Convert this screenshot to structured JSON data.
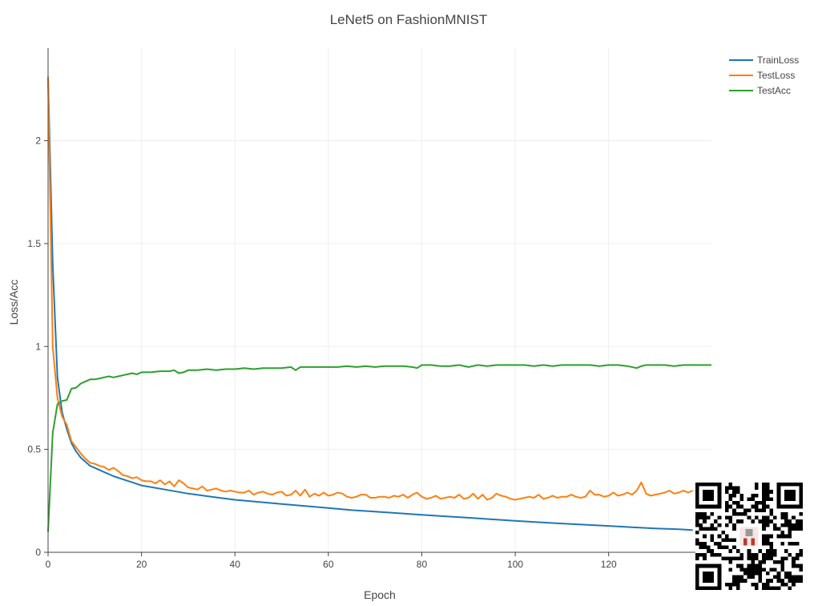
{
  "chart_data": {
    "type": "line",
    "title": "LeNet5 on FashionMNIST",
    "xlabel": "Epoch",
    "ylabel": "Loss/Acc",
    "xlim": [
      0,
      142
    ],
    "ylim": [
      0,
      2.45
    ],
    "x_ticks": [
      0,
      20,
      40,
      60,
      80,
      100,
      120
    ],
    "y_ticks": [
      0,
      0.5,
      1,
      1.5,
      2
    ],
    "y_tick_labels": [
      "0",
      "0.5",
      "1",
      "1.5",
      "2"
    ],
    "grid": true,
    "legend_position": "top-right",
    "series": [
      {
        "name": "TrainLoss",
        "color": "#1f77b4",
        "points": [
          [
            0,
            2.31
          ],
          [
            1,
            1.4
          ],
          [
            2,
            0.85
          ],
          [
            3,
            0.68
          ],
          [
            4,
            0.6
          ],
          [
            5,
            0.53
          ],
          [
            6,
            0.49
          ],
          [
            7,
            0.46
          ],
          [
            8,
            0.44
          ],
          [
            9,
            0.42
          ],
          [
            10,
            0.41
          ],
          [
            12,
            0.39
          ],
          [
            14,
            0.37
          ],
          [
            16,
            0.355
          ],
          [
            18,
            0.34
          ],
          [
            20,
            0.325
          ],
          [
            25,
            0.305
          ],
          [
            30,
            0.285
          ],
          [
            35,
            0.27
          ],
          [
            40,
            0.255
          ],
          [
            45,
            0.245
          ],
          [
            50,
            0.235
          ],
          [
            55,
            0.225
          ],
          [
            60,
            0.215
          ],
          [
            65,
            0.205
          ],
          [
            70,
            0.198
          ],
          [
            75,
            0.19
          ],
          [
            80,
            0.182
          ],
          [
            85,
            0.175
          ],
          [
            90,
            0.168
          ],
          [
            95,
            0.16
          ],
          [
            100,
            0.153
          ],
          [
            105,
            0.146
          ],
          [
            110,
            0.14
          ],
          [
            115,
            0.134
          ],
          [
            120,
            0.128
          ],
          [
            125,
            0.122
          ],
          [
            130,
            0.116
          ],
          [
            135,
            0.112
          ],
          [
            138,
            0.108
          ]
        ]
      },
      {
        "name": "TestLoss",
        "color": "#ff7f0e",
        "points": [
          [
            0,
            2.31
          ],
          [
            1,
            1.0
          ],
          [
            2,
            0.75
          ],
          [
            3,
            0.66
          ],
          [
            4,
            0.62
          ],
          [
            5,
            0.54
          ],
          [
            6,
            0.51
          ],
          [
            7,
            0.48
          ],
          [
            8,
            0.455
          ],
          [
            9,
            0.435
          ],
          [
            10,
            0.43
          ],
          [
            11,
            0.42
          ],
          [
            12,
            0.415
          ],
          [
            13,
            0.4
          ],
          [
            14,
            0.41
          ],
          [
            15,
            0.395
          ],
          [
            16,
            0.375
          ],
          [
            17,
            0.37
          ],
          [
            18,
            0.36
          ],
          [
            19,
            0.365
          ],
          [
            20,
            0.35
          ],
          [
            21,
            0.345
          ],
          [
            22,
            0.345
          ],
          [
            23,
            0.335
          ],
          [
            24,
            0.35
          ],
          [
            25,
            0.33
          ],
          [
            26,
            0.345
          ],
          [
            27,
            0.32
          ],
          [
            28,
            0.35
          ],
          [
            29,
            0.335
          ],
          [
            30,
            0.315
          ],
          [
            31,
            0.31
          ],
          [
            32,
            0.305
          ],
          [
            33,
            0.32
          ],
          [
            34,
            0.3
          ],
          [
            35,
            0.305
          ],
          [
            36,
            0.31
          ],
          [
            37,
            0.3
          ],
          [
            38,
            0.295
          ],
          [
            39,
            0.3
          ],
          [
            40,
            0.295
          ],
          [
            41,
            0.29
          ],
          [
            42,
            0.29
          ],
          [
            43,
            0.3
          ],
          [
            44,
            0.28
          ],
          [
            45,
            0.29
          ],
          [
            46,
            0.295
          ],
          [
            47,
            0.285
          ],
          [
            48,
            0.28
          ],
          [
            49,
            0.29
          ],
          [
            50,
            0.295
          ],
          [
            51,
            0.275
          ],
          [
            52,
            0.28
          ],
          [
            53,
            0.3
          ],
          [
            54,
            0.275
          ],
          [
            55,
            0.305
          ],
          [
            56,
            0.27
          ],
          [
            57,
            0.285
          ],
          [
            58,
            0.275
          ],
          [
            59,
            0.29
          ],
          [
            60,
            0.275
          ],
          [
            61,
            0.28
          ],
          [
            62,
            0.29
          ],
          [
            63,
            0.285
          ],
          [
            64,
            0.27
          ],
          [
            65,
            0.265
          ],
          [
            66,
            0.27
          ],
          [
            67,
            0.28
          ],
          [
            68,
            0.28
          ],
          [
            69,
            0.265
          ],
          [
            70,
            0.265
          ],
          [
            71,
            0.27
          ],
          [
            72,
            0.27
          ],
          [
            73,
            0.265
          ],
          [
            74,
            0.275
          ],
          [
            75,
            0.27
          ],
          [
            76,
            0.28
          ],
          [
            77,
            0.265
          ],
          [
            78,
            0.28
          ],
          [
            79,
            0.29
          ],
          [
            80,
            0.27
          ],
          [
            81,
            0.26
          ],
          [
            82,
            0.265
          ],
          [
            83,
            0.275
          ],
          [
            84,
            0.26
          ],
          [
            85,
            0.265
          ],
          [
            86,
            0.27
          ],
          [
            87,
            0.265
          ],
          [
            88,
            0.28
          ],
          [
            89,
            0.26
          ],
          [
            90,
            0.265
          ],
          [
            91,
            0.285
          ],
          [
            92,
            0.26
          ],
          [
            93,
            0.28
          ],
          [
            94,
            0.255
          ],
          [
            95,
            0.265
          ],
          [
            96,
            0.285
          ],
          [
            97,
            0.275
          ],
          [
            98,
            0.27
          ],
          [
            99,
            0.26
          ],
          [
            100,
            0.255
          ],
          [
            101,
            0.26
          ],
          [
            102,
            0.265
          ],
          [
            103,
            0.27
          ],
          [
            104,
            0.265
          ],
          [
            105,
            0.28
          ],
          [
            106,
            0.26
          ],
          [
            107,
            0.265
          ],
          [
            108,
            0.275
          ],
          [
            109,
            0.265
          ],
          [
            110,
            0.27
          ],
          [
            111,
            0.27
          ],
          [
            112,
            0.28
          ],
          [
            113,
            0.27
          ],
          [
            114,
            0.265
          ],
          [
            115,
            0.27
          ],
          [
            116,
            0.3
          ],
          [
            117,
            0.28
          ],
          [
            118,
            0.28
          ],
          [
            119,
            0.27
          ],
          [
            120,
            0.275
          ],
          [
            121,
            0.29
          ],
          [
            122,
            0.275
          ],
          [
            123,
            0.28
          ],
          [
            124,
            0.29
          ],
          [
            125,
            0.28
          ],
          [
            126,
            0.3
          ],
          [
            127,
            0.34
          ],
          [
            128,
            0.285
          ],
          [
            129,
            0.275
          ],
          [
            130,
            0.28
          ],
          [
            131,
            0.285
          ],
          [
            132,
            0.29
          ],
          [
            133,
            0.3
          ],
          [
            134,
            0.285
          ],
          [
            135,
            0.29
          ],
          [
            136,
            0.3
          ],
          [
            137,
            0.29
          ],
          [
            138,
            0.3
          ]
        ]
      },
      {
        "name": "TestAcc",
        "color": "#2ca02c",
        "points": [
          [
            0,
            0.1
          ],
          [
            1,
            0.58
          ],
          [
            2,
            0.72
          ],
          [
            3,
            0.735
          ],
          [
            4,
            0.74
          ],
          [
            5,
            0.795
          ],
          [
            6,
            0.8
          ],
          [
            7,
            0.82
          ],
          [
            8,
            0.83
          ],
          [
            9,
            0.84
          ],
          [
            10,
            0.84
          ],
          [
            11,
            0.845
          ],
          [
            12,
            0.85
          ],
          [
            13,
            0.855
          ],
          [
            14,
            0.85
          ],
          [
            15,
            0.855
          ],
          [
            16,
            0.86
          ],
          [
            17,
            0.865
          ],
          [
            18,
            0.87
          ],
          [
            19,
            0.865
          ],
          [
            20,
            0.875
          ],
          [
            22,
            0.875
          ],
          [
            24,
            0.88
          ],
          [
            26,
            0.88
          ],
          [
            27,
            0.885
          ],
          [
            28,
            0.87
          ],
          [
            29,
            0.875
          ],
          [
            30,
            0.885
          ],
          [
            32,
            0.885
          ],
          [
            34,
            0.89
          ],
          [
            36,
            0.885
          ],
          [
            38,
            0.89
          ],
          [
            40,
            0.89
          ],
          [
            42,
            0.895
          ],
          [
            44,
            0.89
          ],
          [
            46,
            0.895
          ],
          [
            48,
            0.895
          ],
          [
            50,
            0.895
          ],
          [
            52,
            0.9
          ],
          [
            53,
            0.885
          ],
          [
            54,
            0.9
          ],
          [
            56,
            0.9
          ],
          [
            58,
            0.9
          ],
          [
            60,
            0.9
          ],
          [
            62,
            0.9
          ],
          [
            64,
            0.905
          ],
          [
            66,
            0.9
          ],
          [
            68,
            0.905
          ],
          [
            70,
            0.9
          ],
          [
            72,
            0.905
          ],
          [
            74,
            0.905
          ],
          [
            76,
            0.905
          ],
          [
            78,
            0.9
          ],
          [
            79,
            0.895
          ],
          [
            80,
            0.91
          ],
          [
            82,
            0.91
          ],
          [
            84,
            0.905
          ],
          [
            86,
            0.905
          ],
          [
            88,
            0.91
          ],
          [
            90,
            0.9
          ],
          [
            92,
            0.91
          ],
          [
            94,
            0.905
          ],
          [
            96,
            0.91
          ],
          [
            98,
            0.91
          ],
          [
            100,
            0.91
          ],
          [
            102,
            0.91
          ],
          [
            104,
            0.905
          ],
          [
            106,
            0.91
          ],
          [
            108,
            0.905
          ],
          [
            110,
            0.91
          ],
          [
            112,
            0.91
          ],
          [
            114,
            0.91
          ],
          [
            116,
            0.91
          ],
          [
            118,
            0.905
          ],
          [
            120,
            0.91
          ],
          [
            122,
            0.91
          ],
          [
            124,
            0.905
          ],
          [
            126,
            0.895
          ],
          [
            127,
            0.905
          ],
          [
            128,
            0.91
          ],
          [
            130,
            0.91
          ],
          [
            132,
            0.91
          ],
          [
            134,
            0.905
          ],
          [
            136,
            0.91
          ],
          [
            138,
            0.91
          ],
          [
            140,
            0.91
          ],
          [
            142,
            0.91
          ]
        ]
      }
    ]
  }
}
